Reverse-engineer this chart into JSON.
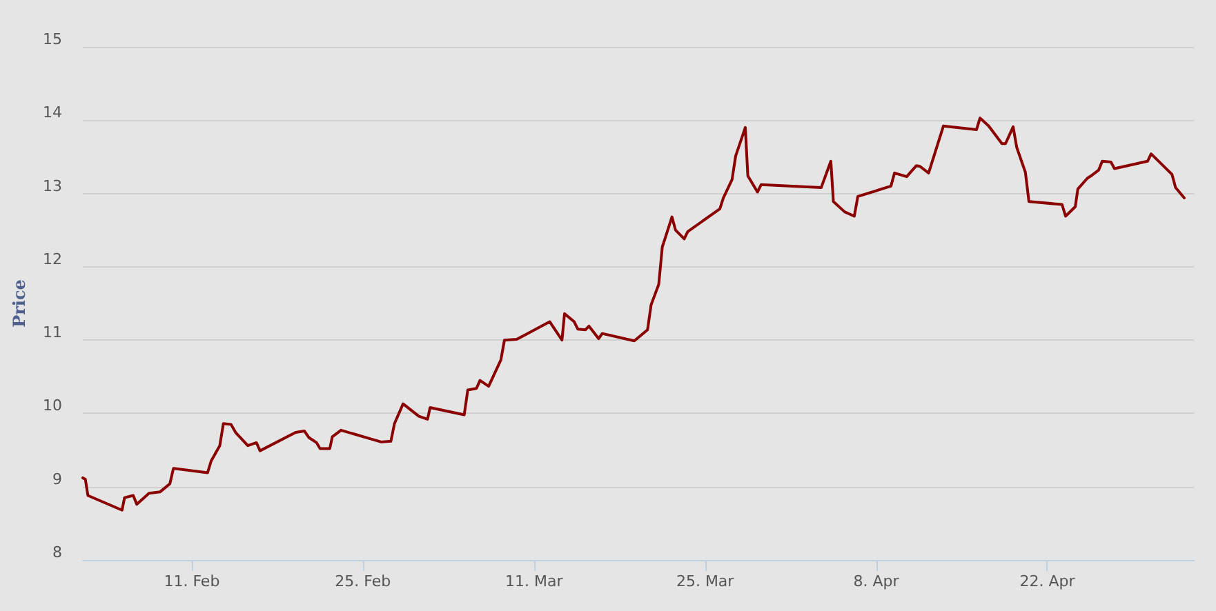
{
  "chart_data": {
    "type": "line",
    "ylabel": "Price",
    "grid": "y",
    "x": [
      "--02-02T02:00",
      "--02-02T07:00",
      "--02-02T12:00",
      "--02-05T07:00",
      "--02-05T12:00",
      "--02-06T05:00",
      "--02-06T12:00",
      "--02-07T12:00",
      "--02-08T10:00",
      "--02-09T05:00",
      "--02-09T12:00",
      "--02-12T07:00",
      "--02-12T14:00",
      "--02-13T07:00",
      "--02-13T14:00",
      "--02-14T05:00",
      "--02-14T14:00",
      "--02-15T14:00",
      "--02-16T07:00",
      "--02-16T14:00",
      "--02-19T12:00",
      "--02-20T05:00",
      "--02-20T14:00",
      "--02-21T05:00",
      "--02-21T12:00",
      "--02-22T07:00",
      "--02-22T12:00",
      "--02-23T05:00",
      "--02-26T12:00",
      "--02-27T07:00",
      "--02-27T14:00",
      "--02-28T07:00",
      "--03-01T14:00",
      "--03-02T07:00",
      "--03-02T12:00",
      "--03-05T07:00",
      "--03-05T14:00",
      "--03-06T07:00",
      "--03-06T14:00",
      "--03-07T07:00",
      "--03-08T07:00",
      "--03-08T14:00",
      "--03-09T14:00",
      "--03-12T07:00",
      "--03-13T07:00",
      "--03-13T12:00",
      "--03-14T07:00",
      "--03-14T14:00",
      "--03-15T05:00",
      "--03-15T12:00",
      "--03-16T07:00",
      "--03-16T14:00",
      "--03-19T05:00",
      "--03-20T07:00",
      "--03-20T14:00",
      "--03-21T05:00",
      "--03-21T12:00",
      "--03-22T07:00",
      "--03-22T14:00",
      "--03-23T07:00",
      "--03-23T14:00",
      "--03-26T05:00",
      "--03-26T12:00",
      "--03-27T05:00",
      "--03-27T12:00",
      "--03-28T07:00",
      "--03-28T12:00",
      "--03-29T07:00",
      "--03-29T14:00",
      "--04-03T12:00",
      "--04-04T07:00",
      "--04-04T12:00",
      "--04-05T10:00",
      "--04-06T05:00",
      "--04-06T12:00",
      "--04-09T05:00",
      "--04-09T12:00",
      "--04-10T12:00",
      "--04-11T07:00",
      "--04-11T14:00",
      "--04-12T07:00",
      "--04-13T12:00",
      "--04-16T05:00",
      "--04-16T12:00",
      "--04-17T05:00",
      "--04-18T07:00",
      "--04-18T14:00",
      "--04-19T05:00",
      "--04-19T12:00",
      "--04-20T05:00",
      "--04-20T12:00",
      "--04-23T05:00",
      "--04-23T12:00",
      "--04-24T07:00",
      "--04-24T12:00",
      "--04-25T07:00",
      "--04-25T14:00",
      "--04-26T05:00",
      "--04-26T12:00",
      "--04-27T05:00",
      "--04-27T12:00",
      "--04-30T05:00",
      "--04-30T12:00",
      "--05-02T05:00",
      "--05-02T12:00",
      "--05-03T05:00"
    ],
    "series": [
      {
        "color": "#8b0000",
        "values": [
          9.12,
          9.1,
          8.88,
          8.68,
          8.85,
          8.88,
          8.76,
          8.91,
          8.93,
          9.04,
          9.25,
          9.19,
          9.35,
          9.56,
          9.86,
          9.85,
          9.74,
          9.56,
          9.6,
          9.49,
          9.74,
          9.76,
          9.67,
          9.6,
          9.52,
          9.52,
          9.68,
          9.77,
          9.61,
          9.62,
          9.86,
          10.13,
          9.96,
          9.92,
          10.08,
          9.98,
          10.32,
          10.34,
          10.45,
          10.37,
          10.73,
          11.0,
          11.01,
          11.25,
          11.0,
          11.36,
          11.25,
          11.15,
          11.14,
          11.19,
          11.02,
          11.09,
          10.99,
          11.14,
          11.48,
          11.76,
          12.27,
          12.68,
          12.5,
          12.38,
          12.48,
          12.79,
          12.94,
          13.19,
          13.51,
          13.9,
          13.24,
          13.02,
          13.12,
          13.08,
          13.44,
          12.89,
          12.75,
          12.69,
          12.96,
          13.1,
          13.28,
          13.23,
          13.38,
          13.37,
          13.28,
          13.92,
          13.87,
          14.03,
          13.92,
          13.68,
          13.68,
          13.91,
          13.63,
          13.29,
          12.89,
          12.85,
          12.69,
          12.82,
          13.06,
          13.21,
          13.24,
          13.32,
          13.44,
          13.43,
          13.34,
          13.44,
          13.54,
          13.26,
          13.08,
          12.94
        ]
      }
    ],
    "xlim": [
      "--02-02T02:00",
      "--05-04"
    ],
    "xticks": [
      {
        "value": "--02-11",
        "label": "11. Feb"
      },
      {
        "value": "--02-25",
        "label": "25. Feb"
      },
      {
        "value": "--03-11",
        "label": "11. Mar"
      },
      {
        "value": "--03-25",
        "label": "25. Mar"
      },
      {
        "value": "--04-08",
        "label": "8. Apr"
      },
      {
        "value": "--04-22",
        "label": "22. Apr"
      }
    ],
    "ylim": [
      8,
      15
    ],
    "yticks": [
      8,
      9,
      10,
      11,
      12,
      13,
      14,
      15
    ]
  }
}
